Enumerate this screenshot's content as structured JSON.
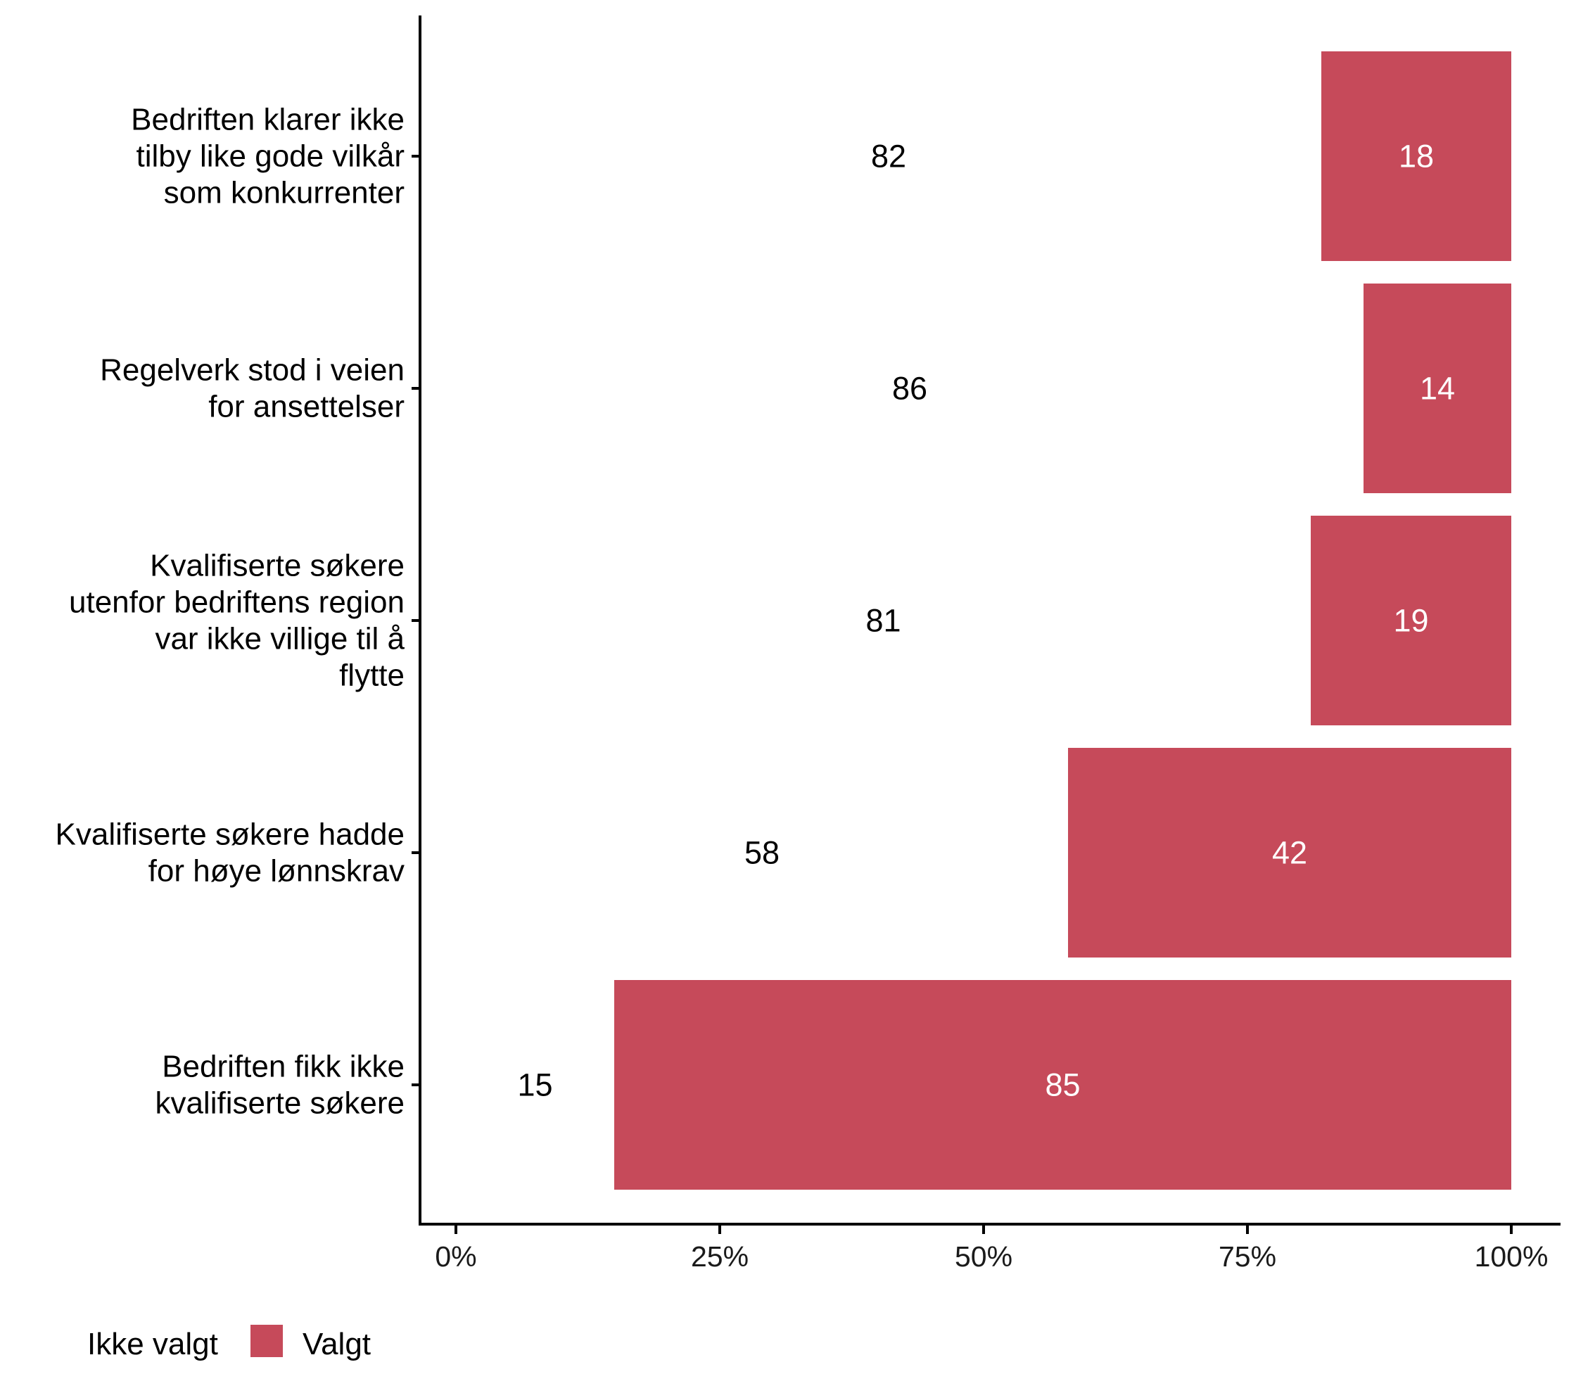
{
  "chart_data": {
    "type": "bar",
    "orientation": "horizontal",
    "stacked": true,
    "categories": [
      [
        "Bedriften klarer ikke",
        "tilby like gode vilkår",
        "som konkurrenter"
      ],
      [
        "Regelverk stod i veien",
        "for ansettelser"
      ],
      [
        "Kvalifiserte søkere",
        "utenfor bedriftens region",
        "var ikke villige til å",
        "flytte"
      ],
      [
        "Kvalifiserte søkere hadde",
        "for høye lønnskrav"
      ],
      [
        "Bedriften fikk ikke",
        "kvalifiserte søkere"
      ]
    ],
    "series": [
      {
        "name": "Ikke valgt",
        "color": "#ffffff",
        "label_color": "#000000",
        "values": [
          82,
          86,
          81,
          58,
          15
        ]
      },
      {
        "name": "Valgt",
        "color": "#c64a5a",
        "label_color": "#ffffff",
        "values": [
          18,
          14,
          19,
          42,
          85
        ]
      }
    ],
    "xlim": [
      0,
      100
    ],
    "x_ticks": [
      0,
      25,
      50,
      75,
      100
    ],
    "x_tick_labels": [
      "0%",
      "25%",
      "50%",
      "75%",
      "100%"
    ],
    "title": "",
    "xlabel": "",
    "ylabel": "",
    "grid": false,
    "legend": {
      "position": "bottom-left",
      "entries": [
        "Ikke valgt",
        "Valgt"
      ]
    }
  }
}
